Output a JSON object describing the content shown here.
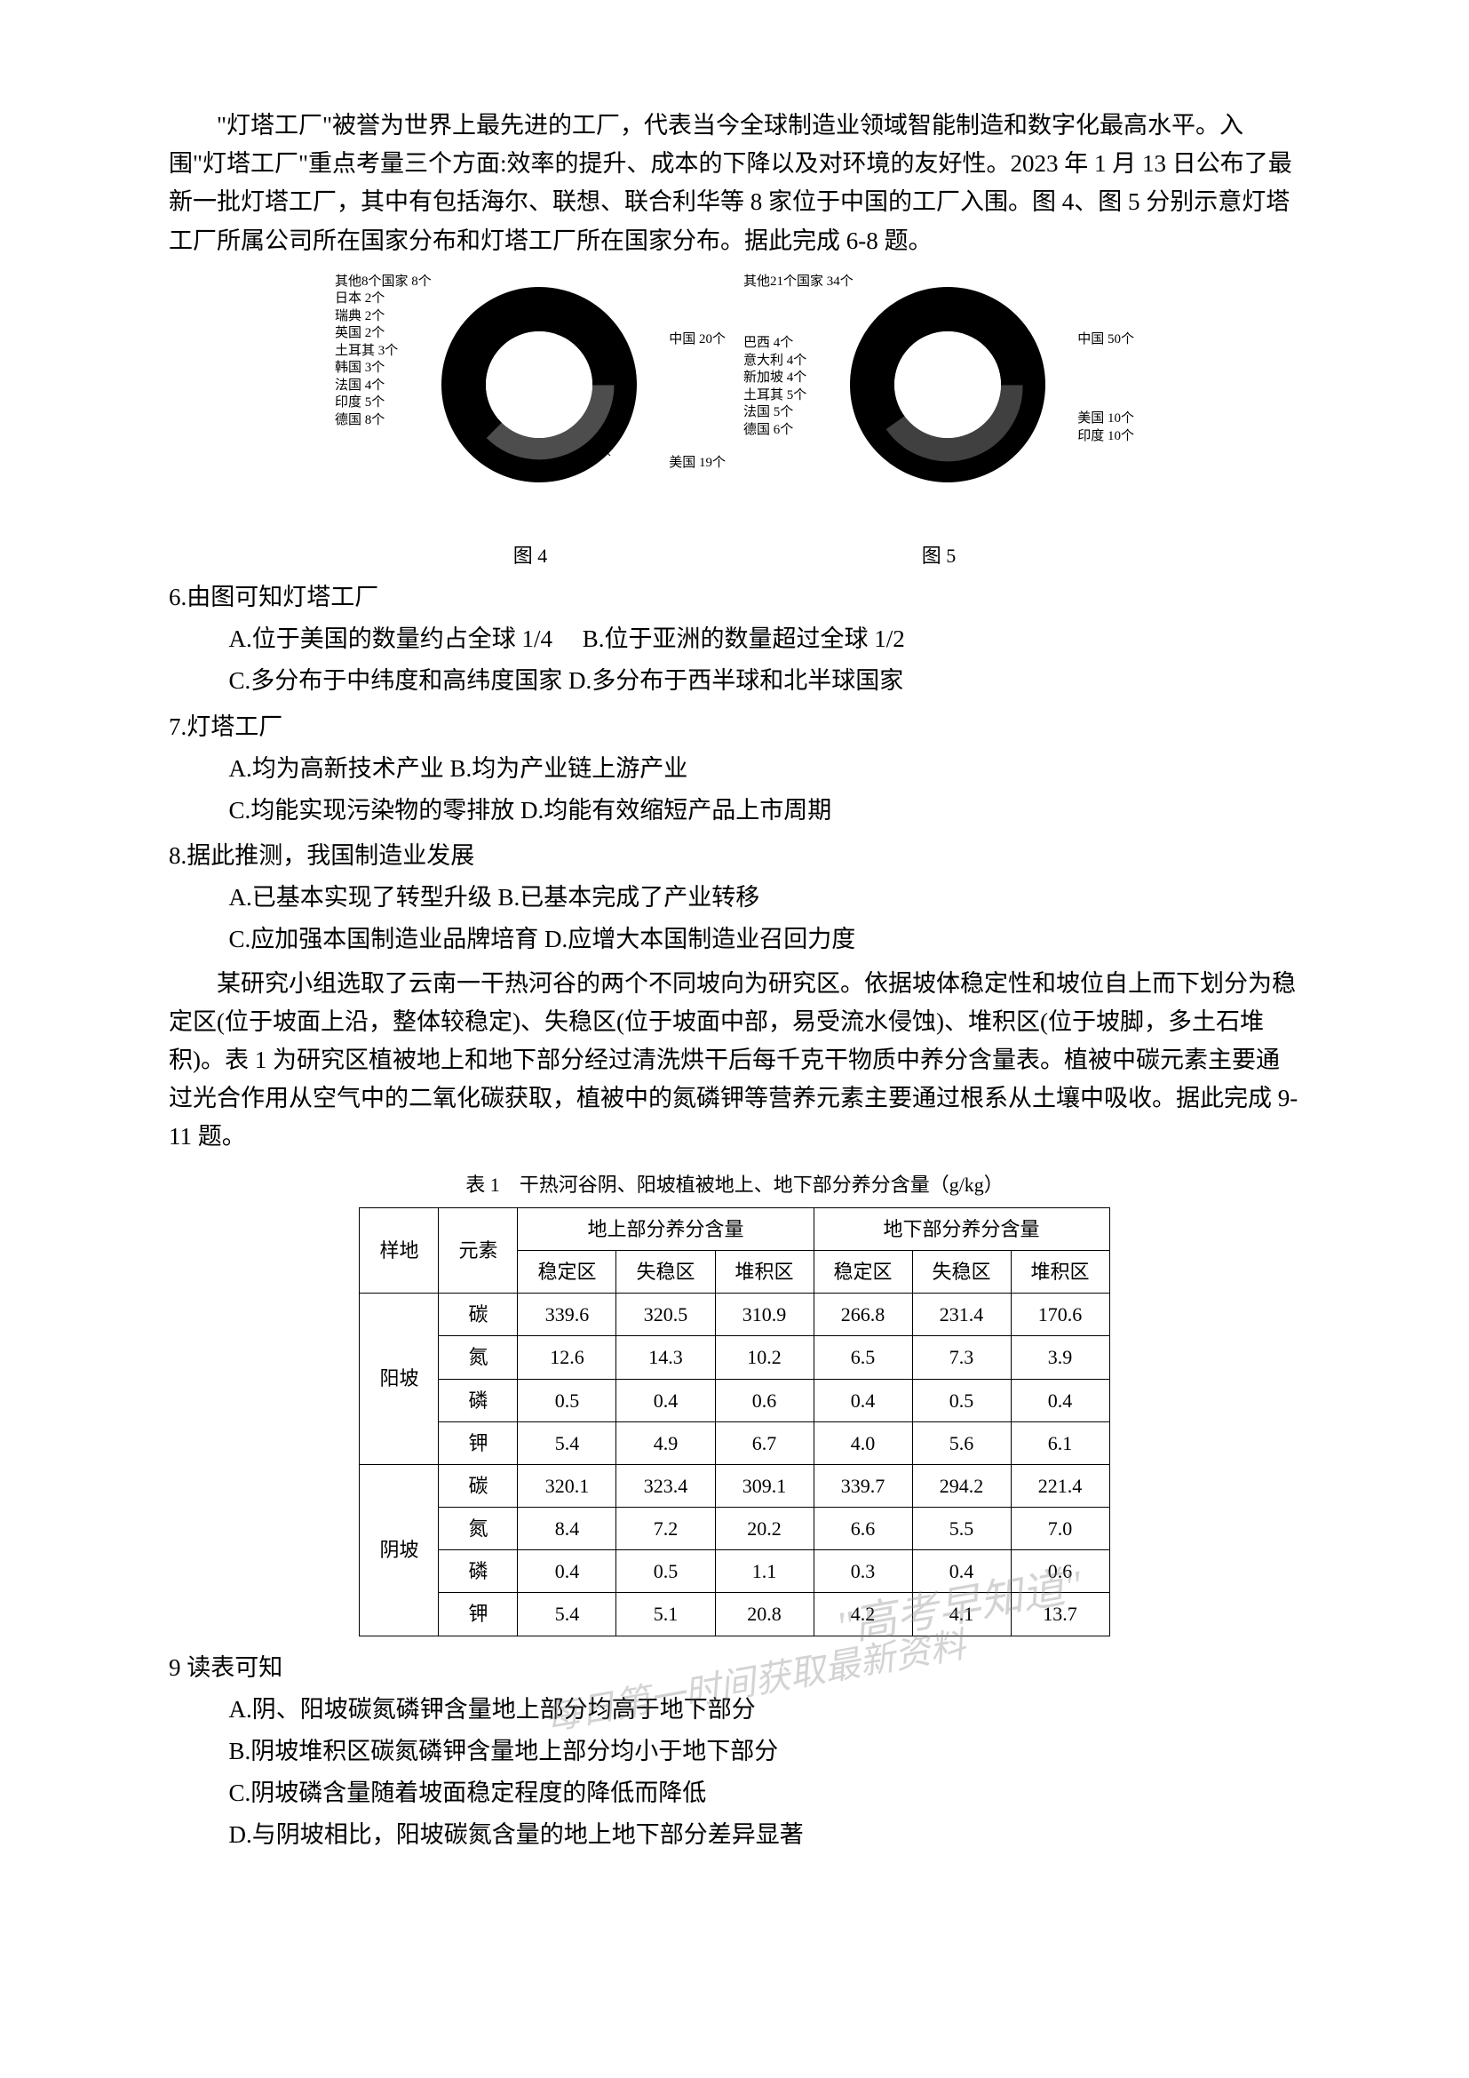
{
  "intro": "\"灯塔工厂\"被誉为世界上最先进的工厂，代表当今全球制造业领域智能制造和数字化最高水平。入围\"灯塔工厂\"重点考量三个方面:效率的提升、成本的下降以及对环境的友好性。2023 年 1 月 13 日公布了最新一批灯塔工厂，其中有包括海尔、联想、联合利华等 8 家位于中国的工厂入围。图 4、图 5 分别示意灯塔工厂所属公司所在国家分布和灯塔工厂所在国家分布。据此完成 6-8 题。",
  "chart4": {
    "caption": "图 4",
    "left_labels": [
      "其他8个国家 8个",
      "日本 2个",
      "瑞典 2个",
      "英国 2个",
      "土耳其 3个",
      "韩国 3个",
      "法国 4个",
      "印度 5个",
      "德国 8个"
    ],
    "right_labels": [
      "中国 20个",
      "美国 19个"
    ],
    "inner_radius": 60,
    "outer_radius": 110,
    "background": "#ffffff",
    "ring_color": "#000000"
  },
  "chart5": {
    "caption": "图 5",
    "left_labels": [
      "其他21个国家 34个",
      "巴西 4个",
      "意大利 4个",
      "新加坡 4个",
      "土耳其 5个",
      "法国 5个",
      "德国 6个"
    ],
    "right_labels": [
      "中国 50个",
      "美国 10个",
      "印度 10个"
    ],
    "inner_radius": 60,
    "outer_radius": 110,
    "background": "#ffffff",
    "ring_color": "#000000"
  },
  "q6": {
    "stem": "6.由图可知灯塔工厂",
    "a": "A.位于美国的数量约占全球 1/4",
    "b": "B.位于亚洲的数量超过全球 1/2",
    "c": "C.多分布于中纬度和高纬度国家",
    "d": "D.多分布于西半球和北半球国家"
  },
  "q7": {
    "stem": "7.灯塔工厂",
    "a": "A.均为高新技术产业",
    "b": "B.均为产业链上游产业",
    "c": "C.均能实现污染物的零排放",
    "d": "D.均能有效缩短产品上市周期"
  },
  "q8": {
    "stem": "8.据此推测，我国制造业发展",
    "a": "A.已基本实现了转型升级",
    "b": "B.已基本完成了产业转移",
    "c": "C.应加强本国制造业品牌培育",
    "d": "D.应增大本国制造业召回力度"
  },
  "intro2": "某研究小组选取了云南一干热河谷的两个不同坡向为研究区。依据坡体稳定性和坡位自上而下划分为稳定区(位于坡面上沿，整体较稳定)、失稳区(位于坡面中部，易受流水侵蚀)、堆积区(位于坡脚，多土石堆积)。表 1 为研究区植被地上和地下部分经过清洗烘干后每千克干物质中养分含量表。植被中碳元素主要通过光合作用从空气中的二氧化碳获取，植被中的氮磷钾等营养元素主要通过根系从土壤中吸收。据此完成 9-11 题。",
  "table": {
    "caption": "表 1　干热河谷阴、阳坡植被地上、地下部分养分含量（g/kg）",
    "head_row1_site": "样地",
    "head_row1_elem": "元素",
    "head_row1_above": "地上部分养分含量",
    "head_row1_below": "地下部分养分含量",
    "head_row2_cols": [
      "稳定区",
      "失稳区",
      "堆积区",
      "稳定区",
      "失稳区",
      "堆积区"
    ],
    "rows": [
      {
        "site": "阳坡",
        "elem": "碳",
        "v": [
          "339.6",
          "320.5",
          "310.9",
          "266.8",
          "231.4",
          "170.6"
        ]
      },
      {
        "site": "阳坡",
        "elem": "氮",
        "v": [
          "12.6",
          "14.3",
          "10.2",
          "6.5",
          "7.3",
          "3.9"
        ]
      },
      {
        "site": "阳坡",
        "elem": "磷",
        "v": [
          "0.5",
          "0.4",
          "0.6",
          "0.4",
          "0.5",
          "0.4"
        ]
      },
      {
        "site": "阳坡",
        "elem": "钾",
        "v": [
          "5.4",
          "4.9",
          "6.7",
          "4.0",
          "5.6",
          "6.1"
        ]
      },
      {
        "site": "阴坡",
        "elem": "碳",
        "v": [
          "320.1",
          "323.4",
          "309.1",
          "339.7",
          "294.2",
          "221.4"
        ]
      },
      {
        "site": "阴坡",
        "elem": "氮",
        "v": [
          "8.4",
          "7.2",
          "20.2",
          "6.6",
          "5.5",
          "7.0"
        ]
      },
      {
        "site": "阴坡",
        "elem": "磷",
        "v": [
          "0.4",
          "0.5",
          "1.1",
          "0.3",
          "0.4",
          "0.6"
        ]
      },
      {
        "site": "阴坡",
        "elem": "钾",
        "v": [
          "5.4",
          "5.1",
          "20.8",
          "4.2",
          "4.1",
          "13.7"
        ]
      }
    ],
    "site_labels": [
      "阳坡",
      "阴坡"
    ]
  },
  "q9": {
    "stem": "9 读表可知",
    "a": "A.阴、阳坡碳氮磷钾含量地上部分均高于地下部分",
    "b": "B.阴坡堆积区碳氮磷钾含量地上部分均小于地下部分",
    "c": "C.阴坡磷含量随着坡面稳定程度的降低而降低",
    "d": "D.与阴坡相比，阳坡碳氮含量的地上地下部分差异显著"
  },
  "watermark1": "\"高考早知道\"",
  "watermark2": "每日第一时间获取最新资料"
}
